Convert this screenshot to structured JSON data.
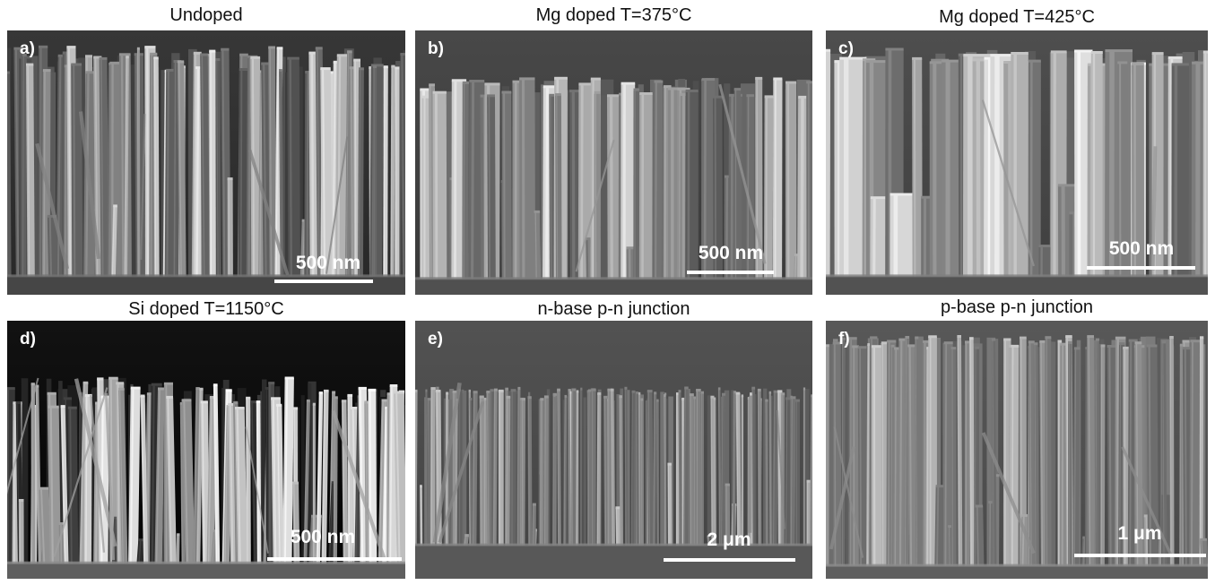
{
  "panels": [
    {
      "title": "Undoped",
      "letter": "a)",
      "scale": "500 nm"
    },
    {
      "title": "Mg doped T=375°C",
      "letter": "b)",
      "scale": "500 nm"
    },
    {
      "title": "Mg doped T=425°C",
      "letter": "c)",
      "scale": "500 nm"
    },
    {
      "title": "Si doped T=1150°C",
      "letter": "d)",
      "scale": "500 nm"
    },
    {
      "title": "n-base p-n junction",
      "letter": "e)",
      "scale": "2 μm"
    },
    {
      "title": "p-base p-n junction",
      "letter": "f)",
      "scale": "1 μm"
    }
  ]
}
